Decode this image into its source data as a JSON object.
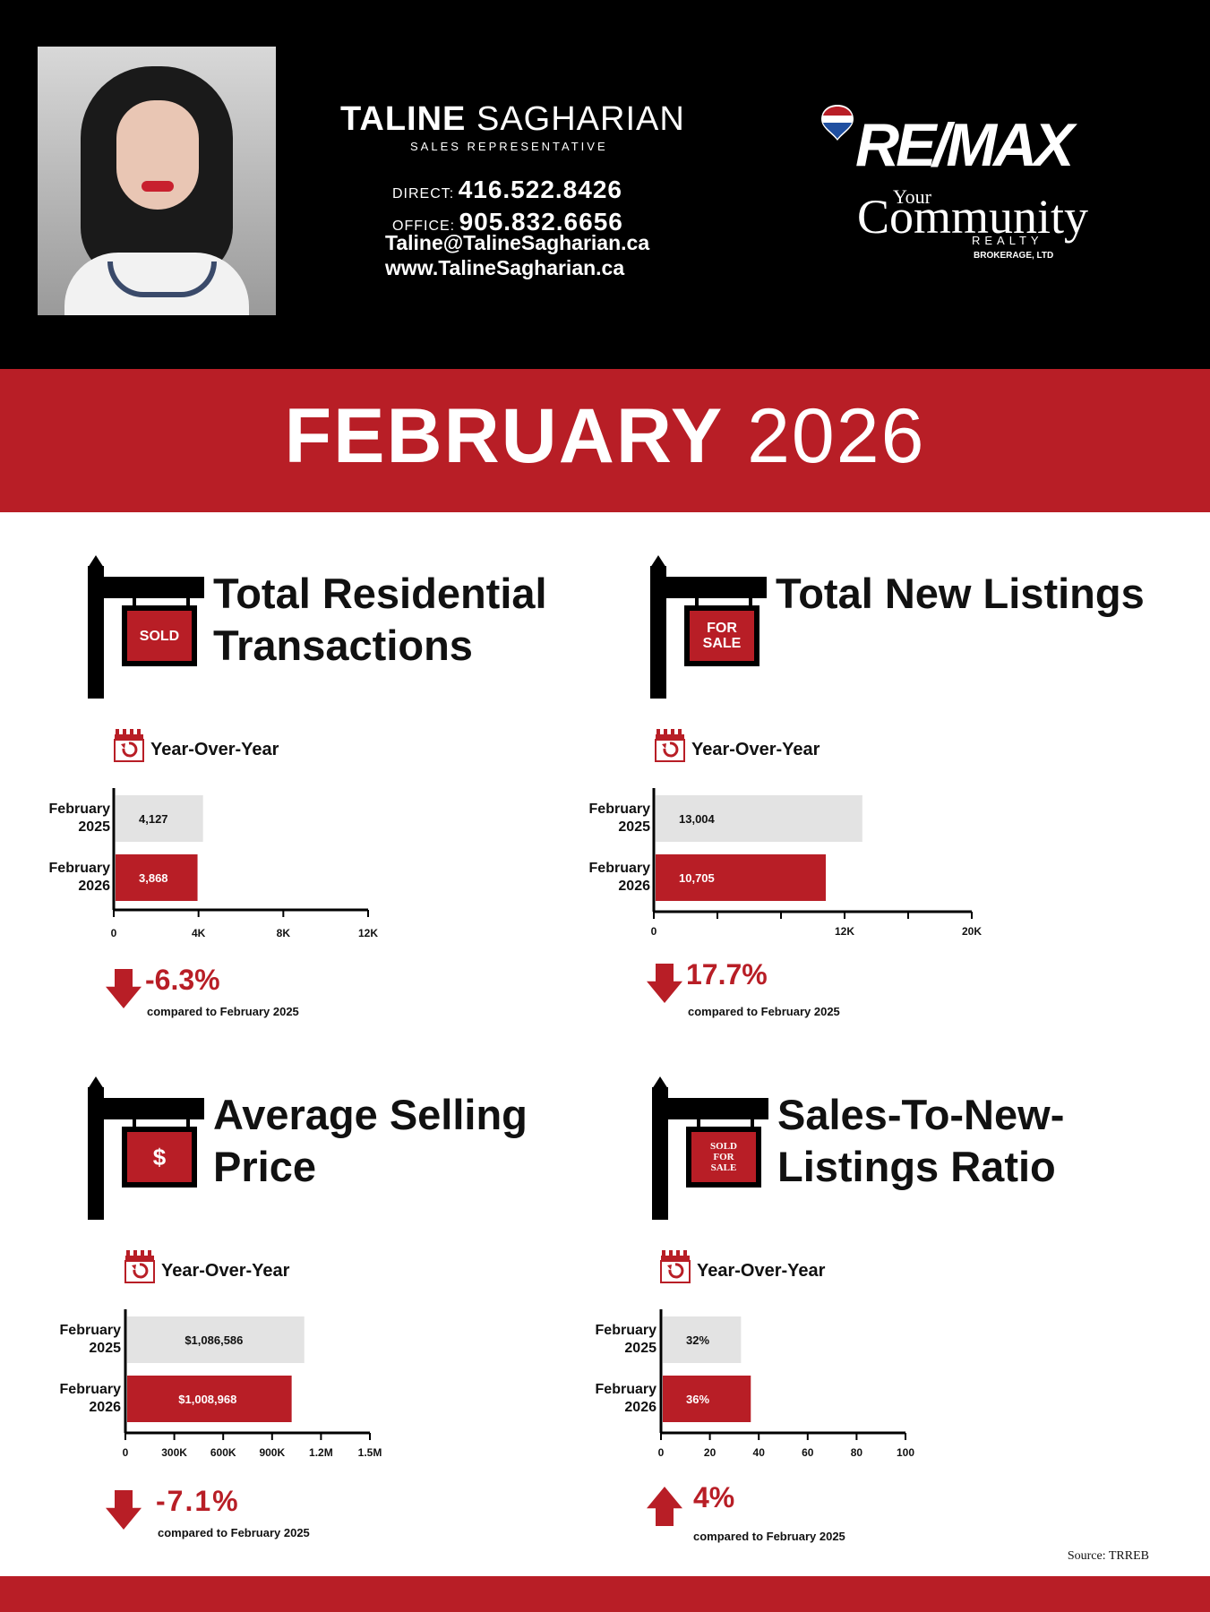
{
  "agent": {
    "first_name": "TALINE",
    "last_name": "SAGHARIAN",
    "title": "SALES REPRESENTATIVE",
    "direct_label": "DIRECT:",
    "direct_number": "416.522.8426",
    "office_label": "OFFICE:",
    "office_number": "905.832.6656",
    "email": "Taline@TalineSagharian.ca",
    "website": "www.TalineSagharian.ca"
  },
  "brand": {
    "logo_main": "RE/MAX",
    "logo_your": "Your",
    "logo_community": "Community",
    "logo_realty": "REALTY",
    "logo_brokerage": "BROKERAGE, LTD",
    "colors": {
      "red": "#b81e26",
      "blue": "#1f4fa0",
      "black": "#000000",
      "grey_bar": "#e3e3e3"
    }
  },
  "banner": {
    "month": "FEBRUARY",
    "year": "2026"
  },
  "sections": [
    {
      "title_line1": "Total Residential",
      "title_line2": "Transactions",
      "sign_text": "SOLD",
      "yoy_label": "Year-Over-Year",
      "change": "-6.3%",
      "direction": "down",
      "compare": "compared to February 2025"
    },
    {
      "title_line1": "Total New Listings",
      "title_line2": "",
      "sign_text": "FOR SALE",
      "yoy_label": "Year-Over-Year",
      "change": "17.7%",
      "direction": "down",
      "compare": "compared to February 2025"
    },
    {
      "title_line1": "Average Selling",
      "title_line2": "Price",
      "sign_text": "$",
      "yoy_label": "Year-Over-Year",
      "change": "-7.1%",
      "direction": "down",
      "compare": "compared to February 2025"
    },
    {
      "title_line1": "Sales-To-New-",
      "title_line2": "Listings Ratio",
      "sign_text": "SOLD FOR SALE",
      "yoy_label": "Year-Over-Year",
      "change": "4%",
      "direction": "up",
      "compare": "compared to February 2025"
    }
  ],
  "chart_data": [
    {
      "type": "bar",
      "orientation": "horizontal",
      "categories": [
        "February 2025",
        "February 2026"
      ],
      "values": [
        4127,
        3868
      ],
      "value_labels": [
        "4,127",
        "3,868"
      ],
      "bar_colors": [
        "#e3e3e3",
        "#b81e26"
      ],
      "xlim": [
        0,
        12000
      ],
      "ticks": [
        0,
        4000,
        8000,
        12000
      ],
      "tick_labels": [
        "0",
        "4K",
        "8K",
        "12K"
      ]
    },
    {
      "type": "bar",
      "orientation": "horizontal",
      "categories": [
        "February 2025",
        "February 2026"
      ],
      "values": [
        13004,
        10705
      ],
      "value_labels": [
        "13,004",
        "10,705"
      ],
      "bar_colors": [
        "#e3e3e3",
        "#b81e26"
      ],
      "xlim": [
        0,
        20000
      ],
      "ticks": [
        0,
        4000,
        8000,
        12000,
        16000,
        20000
      ],
      "tick_labels": [
        "0",
        "",
        "",
        "12K",
        "",
        "20K"
      ]
    },
    {
      "type": "bar",
      "orientation": "horizontal",
      "categories": [
        "February 2025",
        "February 2026"
      ],
      "values": [
        1086586,
        1008968
      ],
      "value_labels": [
        "$1,086,586",
        "$1,008,968"
      ],
      "bar_colors": [
        "#e3e3e3",
        "#b81e26"
      ],
      "xlim": [
        0,
        1500000
      ],
      "ticks": [
        0,
        300000,
        600000,
        900000,
        1200000,
        1500000
      ],
      "tick_labels": [
        "0",
        "300K",
        "600K",
        "900K",
        "1.2M",
        "1.5M"
      ]
    },
    {
      "type": "bar",
      "orientation": "horizontal",
      "categories": [
        "February 2025",
        "February 2026"
      ],
      "values": [
        32,
        36
      ],
      "value_labels": [
        "32%",
        "36%"
      ],
      "bar_colors": [
        "#e3e3e3",
        "#b81e26"
      ],
      "xlim": [
        0,
        100
      ],
      "ticks": [
        0,
        20,
        40,
        60,
        80,
        100
      ],
      "tick_labels": [
        "0",
        "20",
        "40",
        "60",
        "80",
        "100"
      ]
    }
  ],
  "source": "Source: TRREB"
}
